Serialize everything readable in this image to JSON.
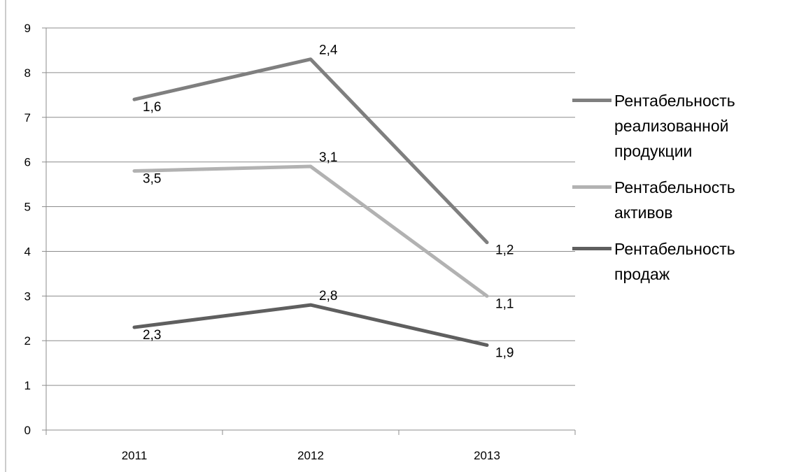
{
  "chart_data": {
    "type": "line",
    "title": "",
    "xlabel": "",
    "ylabel": "",
    "categories": [
      "2011",
      "2012",
      "2013"
    ],
    "ylim": [
      0,
      9
    ],
    "yticks": [
      "0",
      "1",
      "2",
      "3",
      "4",
      "5",
      "6",
      "7",
      "8",
      "9"
    ],
    "grid": true,
    "legend_position": "right",
    "series": [
      {
        "name": "Рентабельность реализованной продукции",
        "values": [
          7.4,
          8.3,
          4.2
        ],
        "labels": [
          "1,6",
          "2,4",
          "1,2"
        ],
        "color": "#7f7f7f"
      },
      {
        "name": "Рентабельность активов",
        "values": [
          5.8,
          5.9,
          3.0
        ],
        "labels": [
          "3,5",
          "3,1",
          "1,1"
        ],
        "color": "#b2b2b2"
      },
      {
        "name": "Рентабельность продаж",
        "values": [
          2.3,
          2.8,
          1.9
        ],
        "labels": [
          "2,3",
          "2,8",
          "1,9"
        ],
        "color": "#5f5f5f"
      }
    ]
  },
  "legend": {
    "items": [
      {
        "label": "Рентабельность\nреализованной\nпродукции",
        "color": "#7f7f7f"
      },
      {
        "label": "Рентабельность\nактивов",
        "color": "#b2b2b2"
      },
      {
        "label": "Рентабельность\nпродаж",
        "color": "#5f5f5f"
      }
    ]
  }
}
